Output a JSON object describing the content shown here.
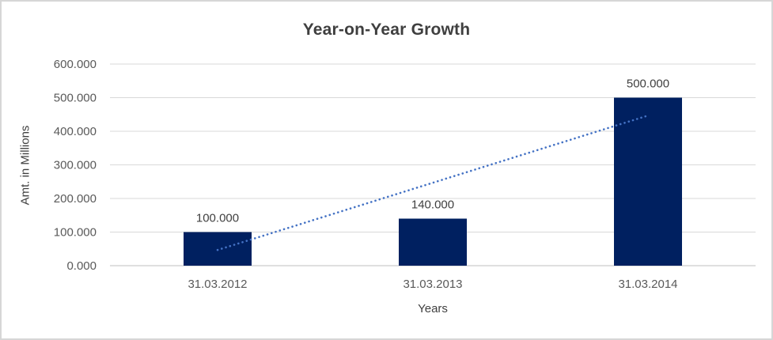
{
  "chart_data": {
    "type": "bar",
    "title": "Year-on-Year Growth",
    "xlabel": "Years",
    "ylabel": "Amt. in Millions",
    "categories": [
      "31.03.2012",
      "31.03.2013",
      "31.03.2014"
    ],
    "values": [
      100,
      140,
      500
    ],
    "data_labels": [
      "100.000",
      "140.000",
      "500.000"
    ],
    "y_ticks": [
      {
        "value": 0,
        "label": "0.000"
      },
      {
        "value": 100,
        "label": "100.000"
      },
      {
        "value": 200,
        "label": "200.000"
      },
      {
        "value": 300,
        "label": "300.000"
      },
      {
        "value": 400,
        "label": "400.000"
      },
      {
        "value": 500,
        "label": "500.000"
      },
      {
        "value": 600,
        "label": "600.000"
      }
    ],
    "ylim": [
      0,
      600
    ],
    "grid": true,
    "legend_position": "none",
    "trendline": {
      "type": "linear",
      "style": "dotted",
      "start_value": 46.7,
      "end_value": 446.7
    }
  },
  "colors": {
    "bar": "#002060",
    "trendline": "#4472c4",
    "gridline": "#d9d9d9",
    "axis_line": "#bfbfbf",
    "tick_label": "#595959",
    "title_text": "#3f3f3f",
    "frame_border": "#d6d6d6"
  }
}
